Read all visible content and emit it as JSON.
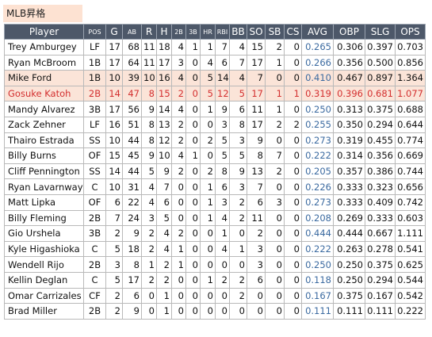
{
  "title": "MLB昇格",
  "table": {
    "columns": [
      "Player",
      "POS",
      "G",
      "AB",
      "R",
      "H",
      "2B",
      "3B",
      "HR",
      "RBI",
      "BB",
      "SO",
      "SB",
      "CS",
      "AVG",
      "OBP",
      "SLG",
      "OPS"
    ],
    "highlight_rows": [
      2,
      3
    ],
    "red_rows": [
      3
    ],
    "rows": [
      [
        "Trey Amburgey",
        "LF",
        "17",
        "68",
        "11",
        "18",
        "4",
        "1",
        "1",
        "7",
        "4",
        "15",
        "2",
        "0",
        "0.265",
        "0.306",
        "0.397",
        "0.703"
      ],
      [
        "Ryan McBroom",
        "1B",
        "17",
        "64",
        "11",
        "17",
        "3",
        "0",
        "4",
        "6",
        "7",
        "17",
        "1",
        "0",
        "0.266",
        "0.356",
        "0.500",
        "0.856"
      ],
      [
        "Mike Ford",
        "1B",
        "10",
        "39",
        "10",
        "16",
        "4",
        "0",
        "5",
        "14",
        "4",
        "7",
        "0",
        "0",
        "0.410",
        "0.467",
        "0.897",
        "1.364"
      ],
      [
        "Gosuke Katoh",
        "2B",
        "14",
        "47",
        "8",
        "15",
        "2",
        "0",
        "5",
        "12",
        "5",
        "17",
        "1",
        "1",
        "0.319",
        "0.396",
        "0.681",
        "1.077"
      ],
      [
        "Mandy Alvarez",
        "3B",
        "17",
        "56",
        "9",
        "14",
        "4",
        "0",
        "1",
        "9",
        "6",
        "11",
        "1",
        "0",
        "0.250",
        "0.313",
        "0.375",
        "0.688"
      ],
      [
        "Zack Zehner",
        "LF",
        "16",
        "51",
        "8",
        "13",
        "2",
        "0",
        "0",
        "3",
        "8",
        "17",
        "2",
        "2",
        "0.255",
        "0.350",
        "0.294",
        "0.644"
      ],
      [
        "Thairo Estrada",
        "SS",
        "10",
        "44",
        "8",
        "12",
        "2",
        "0",
        "2",
        "5",
        "3",
        "9",
        "0",
        "0",
        "0.273",
        "0.319",
        "0.455",
        "0.774"
      ],
      [
        "Billy Burns",
        "OF",
        "15",
        "45",
        "9",
        "10",
        "4",
        "1",
        "0",
        "5",
        "5",
        "8",
        "7",
        "0",
        "0.222",
        "0.314",
        "0.356",
        "0.669"
      ],
      [
        "Cliff Pennington",
        "SS",
        "14",
        "44",
        "5",
        "9",
        "2",
        "0",
        "2",
        "8",
        "9",
        "13",
        "2",
        "0",
        "0.205",
        "0.357",
        "0.386",
        "0.744"
      ],
      [
        "Ryan Lavarnway",
        "C",
        "10",
        "31",
        "4",
        "7",
        "0",
        "0",
        "1",
        "6",
        "3",
        "7",
        "0",
        "0",
        "0.226",
        "0.333",
        "0.323",
        "0.656"
      ],
      [
        "Matt Lipka",
        "OF",
        "6",
        "22",
        "4",
        "6",
        "0",
        "0",
        "1",
        "3",
        "2",
        "6",
        "3",
        "0",
        "0.273",
        "0.333",
        "0.409",
        "0.742"
      ],
      [
        "Billy Fleming",
        "2B",
        "7",
        "24",
        "3",
        "5",
        "0",
        "0",
        "1",
        "4",
        "2",
        "11",
        "0",
        "0",
        "0.208",
        "0.269",
        "0.333",
        "0.603"
      ],
      [
        "Gio Urshela",
        "3B",
        "2",
        "9",
        "2",
        "4",
        "2",
        "0",
        "0",
        "1",
        "0",
        "2",
        "0",
        "0",
        "0.444",
        "0.444",
        "0.667",
        "1.111"
      ],
      [
        "Kyle Higashioka",
        "C",
        "5",
        "18",
        "2",
        "4",
        "1",
        "0",
        "0",
        "4",
        "1",
        "3",
        "0",
        "0",
        "0.222",
        "0.263",
        "0.278",
        "0.541"
      ],
      [
        "Wendell Rijo",
        "2B",
        "3",
        "8",
        "1",
        "2",
        "1",
        "0",
        "0",
        "0",
        "0",
        "3",
        "0",
        "0",
        "0.250",
        "0.250",
        "0.375",
        "0.625"
      ],
      [
        "Kellin Deglan",
        "C",
        "5",
        "17",
        "2",
        "2",
        "0",
        "0",
        "1",
        "2",
        "2",
        "6",
        "0",
        "0",
        "0.118",
        "0.250",
        "0.294",
        "0.544"
      ],
      [
        "Omar Carrizales",
        "CF",
        "2",
        "6",
        "0",
        "1",
        "0",
        "0",
        "0",
        "0",
        "2",
        "0",
        "0",
        "0",
        "0.167",
        "0.375",
        "0.167",
        "0.542"
      ],
      [
        "Brad Miller",
        "2B",
        "2",
        "9",
        "0",
        "1",
        "0",
        "0",
        "0",
        "0",
        "0",
        "0",
        "0",
        "0",
        "0.111",
        "0.111",
        "0.111",
        "0.222"
      ]
    ]
  }
}
